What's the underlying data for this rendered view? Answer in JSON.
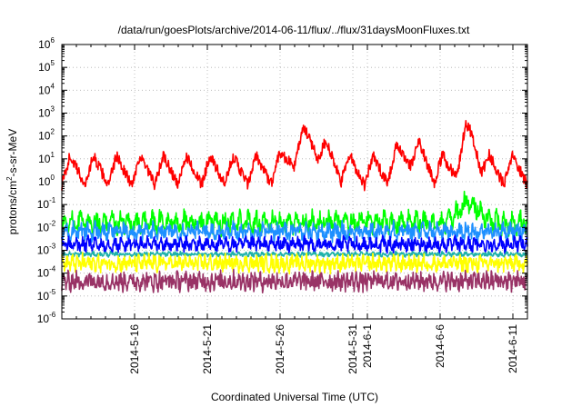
{
  "chart_data": {
    "type": "line",
    "title": "/data/run/goesPlots/archive/2014-06-11/flux/../flux/31daysMoonFluxes.txt",
    "xlabel": "Coordinated Universal Time (UTC)",
    "ylabel": {
      "main": "protons/cm",
      "sup": "2",
      "rest": "-s-sr-MeV"
    },
    "yscale": "log",
    "ylim": [
      1e-06,
      1000000.0
    ],
    "xlim": [
      "2014-05-11",
      "2014-06-12"
    ],
    "grid": true,
    "legend": "none",
    "yticks": [
      {
        "base": "10",
        "exp": "-6",
        "value": 1e-06
      },
      {
        "base": "10",
        "exp": "-5",
        "value": 1e-05
      },
      {
        "base": "10",
        "exp": "-4",
        "value": 0.0001
      },
      {
        "base": "10",
        "exp": "-3",
        "value": 0.001
      },
      {
        "base": "10",
        "exp": "-2",
        "value": 0.01
      },
      {
        "base": "10",
        "exp": "-1",
        "value": 0.1
      },
      {
        "base": "10",
        "exp": "0",
        "value": 1
      },
      {
        "base": "10",
        "exp": "1",
        "value": 10
      },
      {
        "base": "10",
        "exp": "2",
        "value": 100
      },
      {
        "base": "10",
        "exp": "3",
        "value": 1000
      },
      {
        "base": "10",
        "exp": "4",
        "value": 10000
      },
      {
        "base": "10",
        "exp": "5",
        "value": 100000
      },
      {
        "base": "10",
        "exp": "6",
        "value": 1000000
      }
    ],
    "xticks": [
      {
        "label": "2014-5-16",
        "date": "2014-05-16"
      },
      {
        "label": "2014-5-21",
        "date": "2014-05-21"
      },
      {
        "label": "2014-5-26",
        "date": "2014-05-26"
      },
      {
        "label": "2014-5-31",
        "date": "2014-05-31"
      },
      {
        "label": "2014-6-1",
        "date": "2014-06-01"
      },
      {
        "label": "2014-6-6",
        "date": "2014-06-06"
      },
      {
        "label": "2014-6-11",
        "date": "2014-06-11"
      }
    ],
    "series": [
      {
        "color": "#ff0000",
        "base": 0.7,
        "amp": 1.3,
        "period": 1.6,
        "noise": 0.25,
        "events": [
          {
            "date": "2014-05-28",
            "peak": 1.3,
            "width": 1.5
          },
          {
            "date": "2014-06-04",
            "peak": 0.8,
            "width": 1.2
          },
          {
            "date": "2014-06-08",
            "peak": 1.5,
            "width": 0.8
          }
        ]
      },
      {
        "color": "#00ff00",
        "base": 0.008,
        "amp": 0.6,
        "period": 0.55,
        "noise": 0.35,
        "events": [
          {
            "date": "2014-06-08",
            "peak": 0.9,
            "width": 0.9
          }
        ]
      },
      {
        "color": "#1e90ff",
        "base": 0.004,
        "amp": 0.45,
        "period": 0.5,
        "noise": 0.3,
        "events": []
      },
      {
        "color": "#0000ff",
        "base": 0.0012,
        "amp": 0.35,
        "period": 0.45,
        "noise": 0.25,
        "events": []
      },
      {
        "color": "#20b2aa",
        "base": 0.0006,
        "amp": 0.1,
        "period": 0.4,
        "noise": 0.08,
        "events": []
      },
      {
        "color": "#ffff00",
        "base": 0.00018,
        "amp": 0.35,
        "period": 0.35,
        "noise": 0.3,
        "events": []
      },
      {
        "color": "#993366",
        "base": 3e-05,
        "amp": 0.35,
        "period": 0.3,
        "noise": 0.35,
        "events": []
      }
    ]
  }
}
